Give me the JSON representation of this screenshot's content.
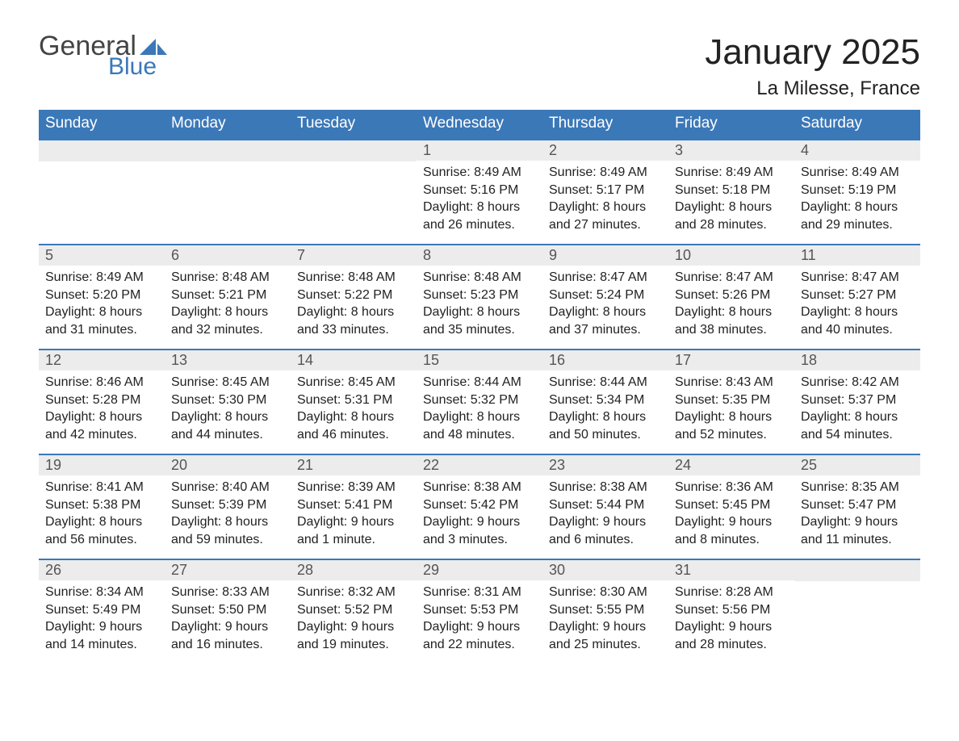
{
  "logo": {
    "text_general": "General",
    "text_blue": "Blue",
    "sail_color": "#3b78b8"
  },
  "title": "January 2025",
  "location": "La Milesse, France",
  "day_headers": [
    "Sunday",
    "Monday",
    "Tuesday",
    "Wednesday",
    "Thursday",
    "Friday",
    "Saturday"
  ],
  "colors": {
    "header_bg": "#3b78b8",
    "header_text": "#ffffff",
    "daynum_bg": "#ececec",
    "week_divider": "#3b78b8",
    "body_text": "#222222"
  },
  "labels": {
    "sunrise": "Sunrise:",
    "sunset": "Sunset:",
    "daylight": "Daylight:"
  },
  "weeks": [
    [
      null,
      null,
      null,
      {
        "num": "1",
        "sunrise": "8:49 AM",
        "sunset": "5:16 PM",
        "daylight": "8 hours and 26 minutes."
      },
      {
        "num": "2",
        "sunrise": "8:49 AM",
        "sunset": "5:17 PM",
        "daylight": "8 hours and 27 minutes."
      },
      {
        "num": "3",
        "sunrise": "8:49 AM",
        "sunset": "5:18 PM",
        "daylight": "8 hours and 28 minutes."
      },
      {
        "num": "4",
        "sunrise": "8:49 AM",
        "sunset": "5:19 PM",
        "daylight": "8 hours and 29 minutes."
      }
    ],
    [
      {
        "num": "5",
        "sunrise": "8:49 AM",
        "sunset": "5:20 PM",
        "daylight": "8 hours and 31 minutes."
      },
      {
        "num": "6",
        "sunrise": "8:48 AM",
        "sunset": "5:21 PM",
        "daylight": "8 hours and 32 minutes."
      },
      {
        "num": "7",
        "sunrise": "8:48 AM",
        "sunset": "5:22 PM",
        "daylight": "8 hours and 33 minutes."
      },
      {
        "num": "8",
        "sunrise": "8:48 AM",
        "sunset": "5:23 PM",
        "daylight": "8 hours and 35 minutes."
      },
      {
        "num": "9",
        "sunrise": "8:47 AM",
        "sunset": "5:24 PM",
        "daylight": "8 hours and 37 minutes."
      },
      {
        "num": "10",
        "sunrise": "8:47 AM",
        "sunset": "5:26 PM",
        "daylight": "8 hours and 38 minutes."
      },
      {
        "num": "11",
        "sunrise": "8:47 AM",
        "sunset": "5:27 PM",
        "daylight": "8 hours and 40 minutes."
      }
    ],
    [
      {
        "num": "12",
        "sunrise": "8:46 AM",
        "sunset": "5:28 PM",
        "daylight": "8 hours and 42 minutes."
      },
      {
        "num": "13",
        "sunrise": "8:45 AM",
        "sunset": "5:30 PM",
        "daylight": "8 hours and 44 minutes."
      },
      {
        "num": "14",
        "sunrise": "8:45 AM",
        "sunset": "5:31 PM",
        "daylight": "8 hours and 46 minutes."
      },
      {
        "num": "15",
        "sunrise": "8:44 AM",
        "sunset": "5:32 PM",
        "daylight": "8 hours and 48 minutes."
      },
      {
        "num": "16",
        "sunrise": "8:44 AM",
        "sunset": "5:34 PM",
        "daylight": "8 hours and 50 minutes."
      },
      {
        "num": "17",
        "sunrise": "8:43 AM",
        "sunset": "5:35 PM",
        "daylight": "8 hours and 52 minutes."
      },
      {
        "num": "18",
        "sunrise": "8:42 AM",
        "sunset": "5:37 PM",
        "daylight": "8 hours and 54 minutes."
      }
    ],
    [
      {
        "num": "19",
        "sunrise": "8:41 AM",
        "sunset": "5:38 PM",
        "daylight": "8 hours and 56 minutes."
      },
      {
        "num": "20",
        "sunrise": "8:40 AM",
        "sunset": "5:39 PM",
        "daylight": "8 hours and 59 minutes."
      },
      {
        "num": "21",
        "sunrise": "8:39 AM",
        "sunset": "5:41 PM",
        "daylight": "9 hours and 1 minute."
      },
      {
        "num": "22",
        "sunrise": "8:38 AM",
        "sunset": "5:42 PM",
        "daylight": "9 hours and 3 minutes."
      },
      {
        "num": "23",
        "sunrise": "8:38 AM",
        "sunset": "5:44 PM",
        "daylight": "9 hours and 6 minutes."
      },
      {
        "num": "24",
        "sunrise": "8:36 AM",
        "sunset": "5:45 PM",
        "daylight": "9 hours and 8 minutes."
      },
      {
        "num": "25",
        "sunrise": "8:35 AM",
        "sunset": "5:47 PM",
        "daylight": "9 hours and 11 minutes."
      }
    ],
    [
      {
        "num": "26",
        "sunrise": "8:34 AM",
        "sunset": "5:49 PM",
        "daylight": "9 hours and 14 minutes."
      },
      {
        "num": "27",
        "sunrise": "8:33 AM",
        "sunset": "5:50 PM",
        "daylight": "9 hours and 16 minutes."
      },
      {
        "num": "28",
        "sunrise": "8:32 AM",
        "sunset": "5:52 PM",
        "daylight": "9 hours and 19 minutes."
      },
      {
        "num": "29",
        "sunrise": "8:31 AM",
        "sunset": "5:53 PM",
        "daylight": "9 hours and 22 minutes."
      },
      {
        "num": "30",
        "sunrise": "8:30 AM",
        "sunset": "5:55 PM",
        "daylight": "9 hours and 25 minutes."
      },
      {
        "num": "31",
        "sunrise": "8:28 AM",
        "sunset": "5:56 PM",
        "daylight": "9 hours and 28 minutes."
      },
      null
    ]
  ]
}
